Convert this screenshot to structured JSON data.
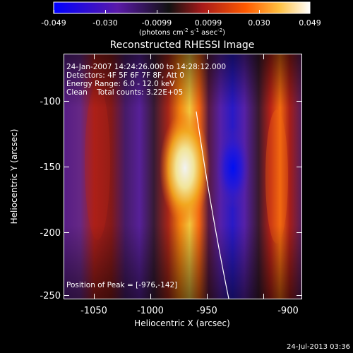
{
  "figure": {
    "title": "Reconstructed RHESSI Image",
    "info_lines": [
      "24-Jan-2007 14:24:26.000 to 14:28:12.000",
      "Detectors: 4F 5F 6F 7F 8F, Att 0",
      "Energy Range: 6.0 - 12.0 keV",
      "Clean    Total counts: 3.22E+05"
    ],
    "peak_label": "Position of Peak = [-976,-142]",
    "footer_date": "24-Jul-2013 03:36"
  },
  "colorbar": {
    "tick_labels": [
      "-0.049",
      "-0.030",
      "-0.0099",
      "0.0099",
      "0.030",
      "0.049"
    ],
    "unit_label": "(photons cm",
    "unit_sup1": "-2",
    "unit_mid": " s",
    "unit_sup2": "-1",
    "unit_tail": " asec",
    "unit_sup3": "-2",
    "unit_close": ")",
    "colors": [
      "#0000ff",
      "#5a1aa8",
      "#1a1a1a",
      "#a81a1a",
      "#ff5a00",
      "#ffc040",
      "#ffffff"
    ]
  },
  "axes": {
    "xlabel": "Heliocentric X (arcsec)",
    "ylabel": "Heliocentric Y (arcsec)",
    "x_ticks": [
      "-1050",
      "-1000",
      "-950",
      "-900"
    ],
    "y_ticks": [
      "-100",
      "-150",
      "-200",
      "-250"
    ]
  }
}
